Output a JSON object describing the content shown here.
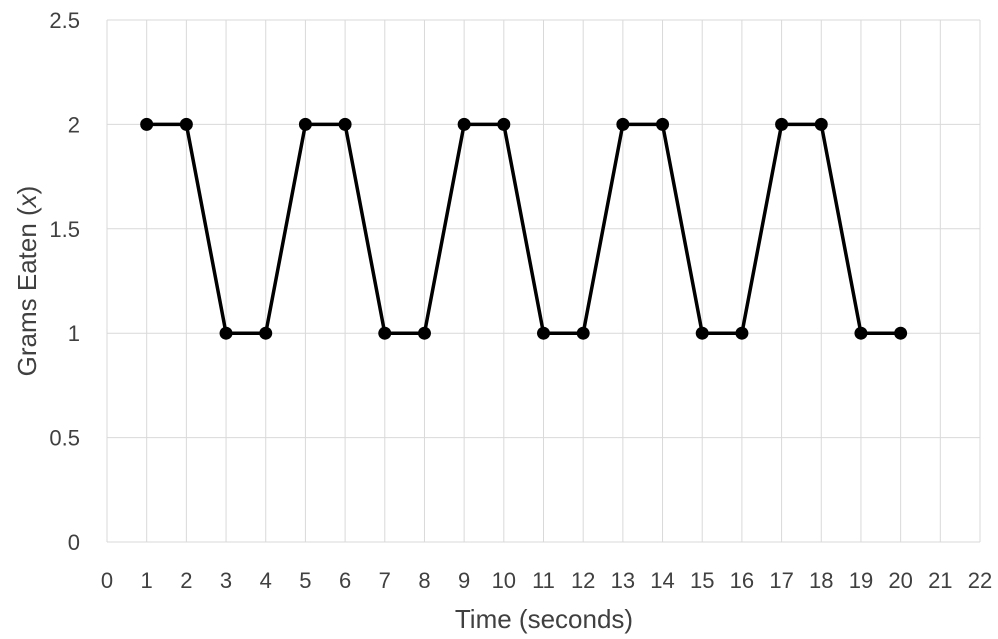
{
  "chart_data": {
    "type": "line",
    "title": "",
    "xlabel": "Time (seconds)",
    "ylabel_text": "Grams Eaten (",
    "ylabel_var": "x",
    "ylabel_close": ")",
    "xlim": [
      0,
      22
    ],
    "ylim": [
      0,
      2.5
    ],
    "x_ticks": [
      "0",
      "1",
      "2",
      "3",
      "4",
      "5",
      "6",
      "7",
      "8",
      "9",
      "10",
      "11",
      "12",
      "13",
      "14",
      "15",
      "16",
      "17",
      "18",
      "19",
      "20",
      "21",
      "22"
    ],
    "y_ticks": [
      "0",
      "0.5",
      "1",
      "1.5",
      "2",
      "2.5"
    ],
    "grid": true,
    "legend": "none",
    "series": [
      {
        "color": "#000000",
        "x": [
          1,
          2,
          3,
          4,
          5,
          6,
          7,
          8,
          9,
          10,
          11,
          12,
          13,
          14,
          15,
          16,
          17,
          18,
          19,
          20
        ],
        "y": [
          2,
          2,
          1,
          1,
          2,
          2,
          1,
          1,
          2,
          2,
          1,
          1,
          2,
          2,
          1,
          1,
          2,
          2,
          1,
          1
        ]
      }
    ]
  }
}
